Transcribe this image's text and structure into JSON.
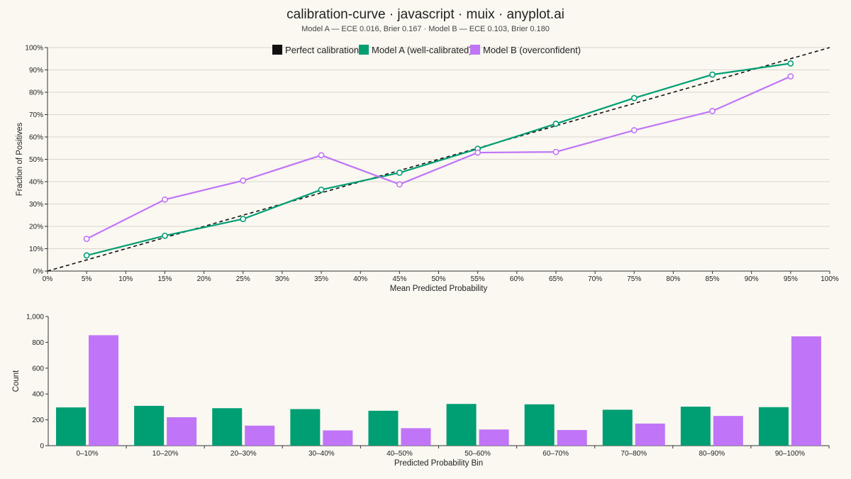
{
  "header": {
    "title": "calibration-curve · javascript · muix · anyplot.ai",
    "subtitle": "Model A — ECE 0.016, Brier 0.167 · Model B — ECE 0.103, Brier 0.180"
  },
  "colors": {
    "model_a": "#009e73",
    "model_b": "#c074f7",
    "perfect": "#111111",
    "grid": "#d9d6cf",
    "background": "#faf8f1"
  },
  "chart_data": [
    {
      "type": "line",
      "xlabel": "Mean Predicted Probability",
      "ylabel": "Fraction of Positives",
      "xlim": [
        0,
        1
      ],
      "ylim": [
        0,
        1
      ],
      "x_ticks": [
        "0%",
        "5%",
        "10%",
        "15%",
        "20%",
        "25%",
        "30%",
        "35%",
        "40%",
        "45%",
        "50%",
        "55%",
        "60%",
        "65%",
        "70%",
        "75%",
        "80%",
        "85%",
        "90%",
        "95%",
        "100%"
      ],
      "y_ticks": [
        "0%",
        "10%",
        "20%",
        "30%",
        "40%",
        "50%",
        "60%",
        "70%",
        "80%",
        "90%",
        "100%"
      ],
      "grid": "horizontal",
      "legend": "top-center",
      "legend_entries": [
        "Perfect calibration",
        "Model A (well-calibrated)",
        "Model B (overconfident)"
      ],
      "series": [
        {
          "name": "Perfect calibration",
          "style": "dashed",
          "x": [
            0,
            1
          ],
          "y": [
            0,
            1
          ]
        },
        {
          "name": "Model A (well-calibrated)",
          "x": [
            0.05,
            0.15,
            0.25,
            0.35,
            0.45,
            0.55,
            0.65,
            0.75,
            0.85,
            0.95
          ],
          "y": [
            0.07,
            0.158,
            0.233,
            0.364,
            0.44,
            0.547,
            0.659,
            0.774,
            0.879,
            0.929
          ]
        },
        {
          "name": "Model B (overconfident)",
          "x": [
            0.05,
            0.15,
            0.25,
            0.35,
            0.45,
            0.55,
            0.65,
            0.75,
            0.85,
            0.95
          ],
          "y": [
            0.144,
            0.32,
            0.405,
            0.518,
            0.388,
            0.53,
            0.533,
            0.63,
            0.716,
            0.871
          ]
        }
      ]
    },
    {
      "type": "bar",
      "xlabel": "Predicted Probability Bin",
      "ylabel": "Count",
      "ylim": [
        0,
        1000
      ],
      "y_ticks": [
        "0",
        "200",
        "400",
        "600",
        "800",
        "1,000"
      ],
      "grid": "none",
      "categories": [
        "0–10%",
        "10–20%",
        "20–30%",
        "30–40%",
        "40–50%",
        "50–60%",
        "60–70%",
        "70–80%",
        "80–90%",
        "90–100%"
      ],
      "series": [
        {
          "name": "Model A (well-calibrated)",
          "values": [
            296,
            308,
            290,
            283,
            270,
            323,
            320,
            278,
            302,
            298
          ]
        },
        {
          "name": "Model B (overconfident)",
          "values": [
            855,
            220,
            155,
            118,
            135,
            125,
            121,
            171,
            230,
            846
          ]
        }
      ]
    }
  ]
}
